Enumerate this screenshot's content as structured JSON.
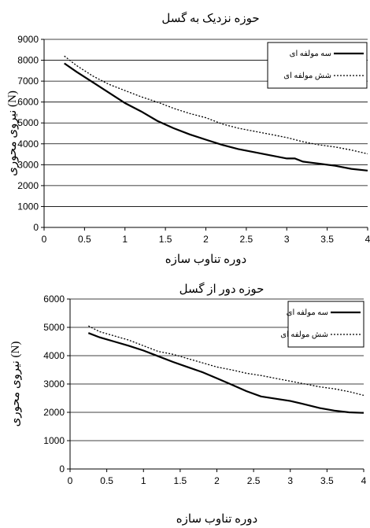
{
  "chart_data": [
    {
      "type": "line",
      "title": "حوزه نزدیک به گسل",
      "xlabel": "دوره تناوب سازه",
      "ylabel": "نیروی محوری (N)",
      "xlim": [
        0,
        4
      ],
      "ylim": [
        0,
        9000
      ],
      "xticks": [
        0,
        0.5,
        1,
        1.5,
        2,
        2.5,
        3,
        3.5,
        4
      ],
      "xtick_labels": [
        "0",
        "0.5",
        "1",
        "1.5",
        "2",
        "2.5",
        "3",
        "3.5",
        "4"
      ],
      "yticks": [
        0,
        1000,
        2000,
        3000,
        4000,
        5000,
        6000,
        7000,
        8000,
        9000
      ],
      "ytick_labels": [
        "0",
        "1000",
        "2000",
        "3000",
        "4000",
        "5000",
        "6000",
        "7000",
        "8000",
        "9000"
      ],
      "grid": "horizontal",
      "legend_position": "top-right",
      "series": [
        {
          "name": "سه مولفه ای",
          "style": "solid",
          "x": [
            0.25,
            0.4,
            0.6,
            0.8,
            1.0,
            1.2,
            1.4,
            1.6,
            1.8,
            2.0,
            2.2,
            2.4,
            2.6,
            2.8,
            3.0,
            3.1,
            3.2,
            3.3,
            3.4,
            3.6,
            3.8,
            4.0
          ],
          "values": [
            7850,
            7450,
            6950,
            6450,
            5950,
            5550,
            5100,
            4750,
            4450,
            4200,
            3950,
            3750,
            3600,
            3450,
            3300,
            3300,
            3150,
            3100,
            3050,
            2950,
            2800,
            2720
          ]
        },
        {
          "name": "شش مولفه ای",
          "style": "dotted",
          "x": [
            0.25,
            0.4,
            0.6,
            0.8,
            1.0,
            1.2,
            1.4,
            1.6,
            1.8,
            2.0,
            2.2,
            2.4,
            2.6,
            2.8,
            3.0,
            3.2,
            3.4,
            3.6,
            3.8,
            4.0
          ],
          "values": [
            8200,
            7750,
            7250,
            6850,
            6550,
            6250,
            6000,
            5700,
            5450,
            5250,
            4950,
            4750,
            4600,
            4450,
            4300,
            4100,
            3950,
            3850,
            3700,
            3520
          ]
        }
      ]
    },
    {
      "type": "line",
      "title": "حوزه دور از گسل",
      "xlabel": "دوره تناوب سازه",
      "ylabel": "نیروی محوری (N)",
      "xlim": [
        0,
        4
      ],
      "ylim": [
        0,
        6000
      ],
      "xticks": [
        0,
        0.5,
        1,
        1.5,
        2,
        2.5,
        3,
        3.5,
        4
      ],
      "xtick_labels": [
        "0",
        "0.5",
        "1",
        "1.5",
        "2",
        "2.5",
        "3",
        "3.5",
        "4"
      ],
      "yticks": [
        0,
        1000,
        2000,
        3000,
        4000,
        5000,
        6000
      ],
      "ytick_labels": [
        "0",
        "1000",
        "2000",
        "3000",
        "4000",
        "5000",
        "6000"
      ],
      "grid": "horizontal",
      "legend_position": "top-right",
      "series": [
        {
          "name": "سه مولفه ای",
          "style": "solid",
          "x": [
            0.25,
            0.4,
            0.6,
            0.8,
            1.0,
            1.2,
            1.4,
            1.6,
            1.8,
            2.0,
            2.2,
            2.4,
            2.6,
            2.8,
            3.0,
            3.2,
            3.4,
            3.6,
            3.8,
            4.0
          ],
          "values": [
            4800,
            4650,
            4500,
            4350,
            4180,
            3980,
            3780,
            3600,
            3420,
            3200,
            2980,
            2750,
            2560,
            2480,
            2400,
            2280,
            2150,
            2060,
            2000,
            1980
          ]
        },
        {
          "name": "شش مولفه ای",
          "style": "dotted",
          "x": [
            0.25,
            0.4,
            0.6,
            0.8,
            1.0,
            1.2,
            1.4,
            1.6,
            1.8,
            2.0,
            2.2,
            2.4,
            2.6,
            2.8,
            3.0,
            3.2,
            3.4,
            3.6,
            3.8,
            4.0
          ],
          "values": [
            5050,
            4850,
            4700,
            4550,
            4350,
            4150,
            4050,
            3900,
            3750,
            3600,
            3500,
            3380,
            3300,
            3200,
            3100,
            3000,
            2900,
            2830,
            2730,
            2600
          ]
        }
      ]
    }
  ]
}
